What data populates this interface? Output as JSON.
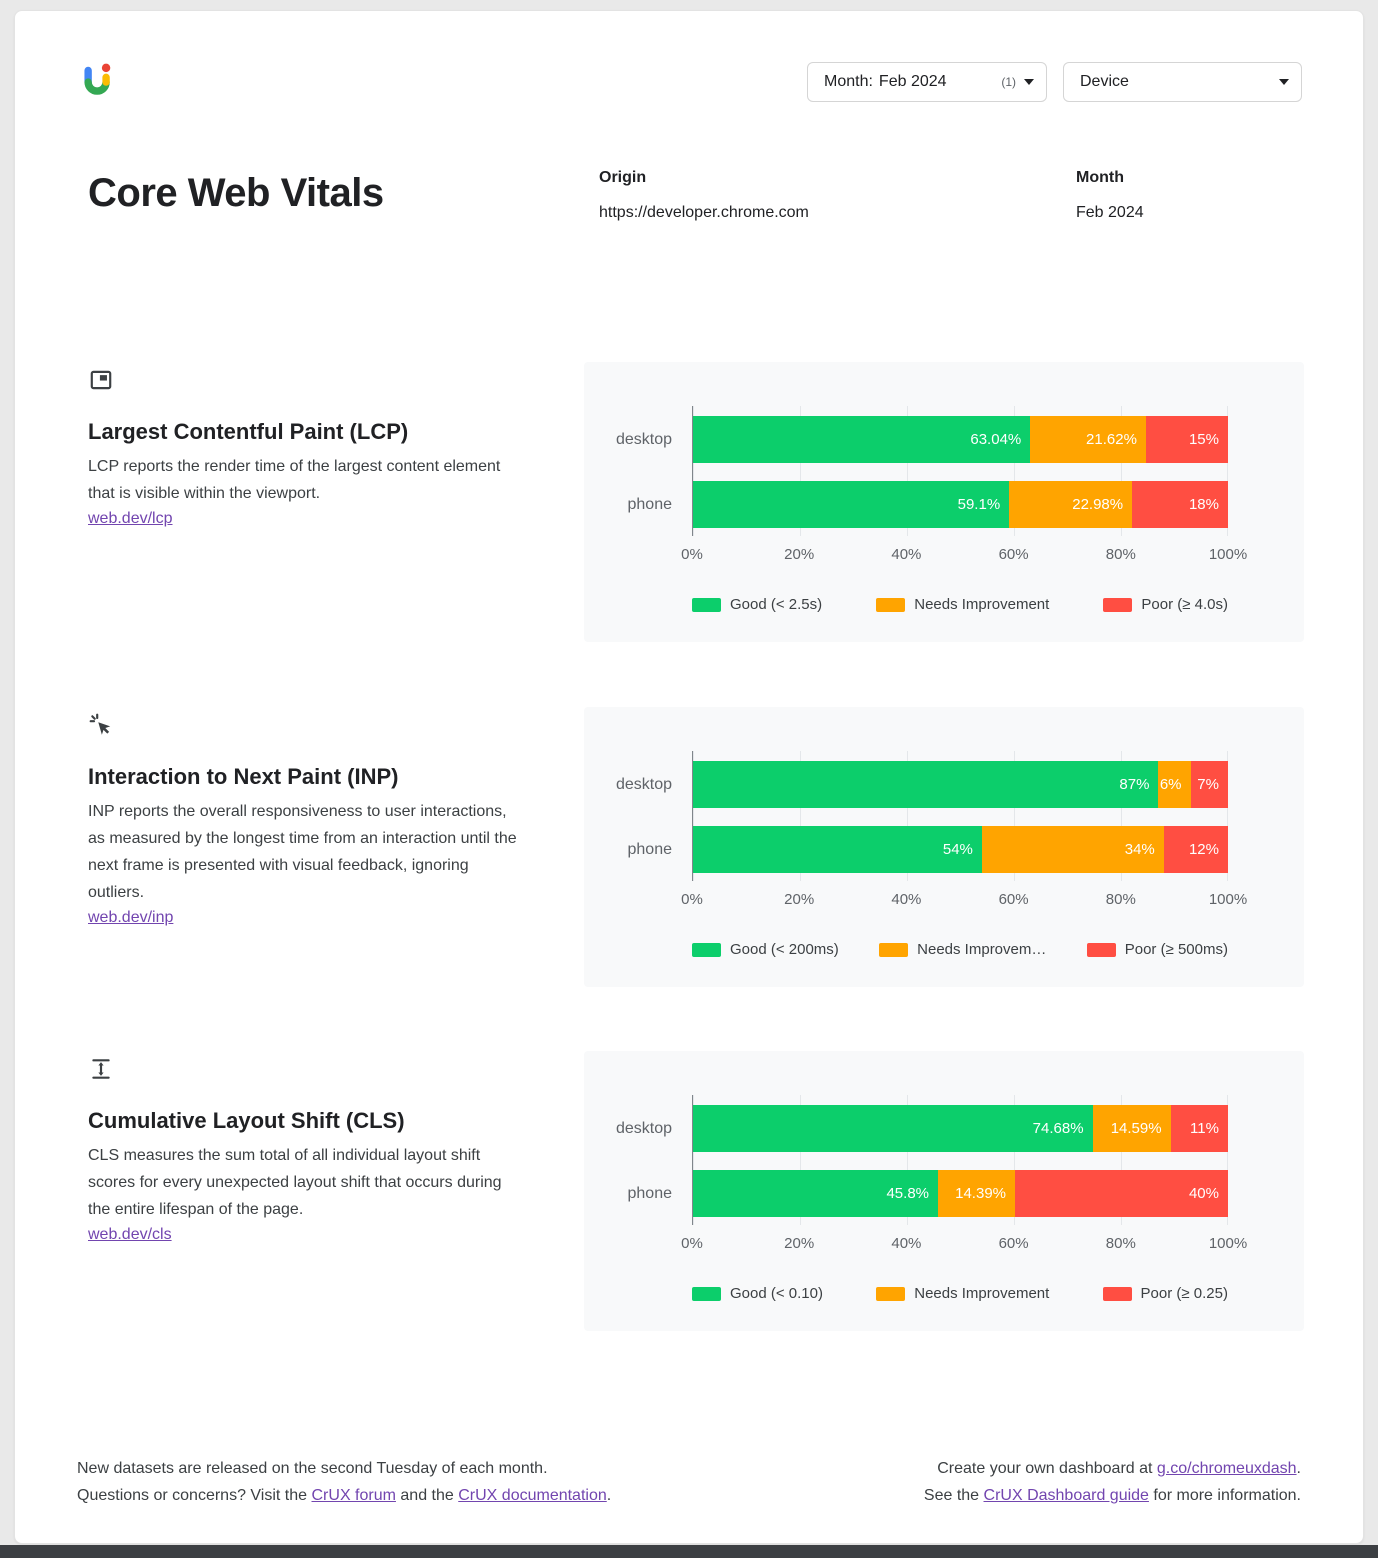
{
  "colors": {
    "good": "#0cce6b",
    "needs_improvement": "#ffa400",
    "poor": "#ff4e42",
    "link": "#7245af"
  },
  "icons": {
    "logo": "crux-dashboard-logo",
    "lcp": "largest-contentful-paint-icon",
    "inp": "pointer-interaction-icon",
    "cls": "layout-shift-icon",
    "caret": "▾"
  },
  "toolbar": {
    "month_filter": {
      "label": "Month:",
      "value": "Feb 2024",
      "count": "(1)"
    },
    "device_filter": {
      "label": "Device"
    }
  },
  "header": {
    "title": "Core Web Vitals",
    "origin_label": "Origin",
    "origin_value": "https://developer.chrome.com",
    "month_label": "Month",
    "month_value": "Feb 2024"
  },
  "sections": [
    {
      "title": "Largest Contentful Paint (LCP)",
      "description": "LCP reports the render time of the largest content element that is visible within the viewport.",
      "link": "web.dev/lcp"
    },
    {
      "title": "Interaction to Next Paint (INP)",
      "description": "INP reports the overall responsiveness to user interactions, as measured by the longest time from an interaction until the next frame is presented with visual feedback, ignoring outliers.",
      "link": "web.dev/inp"
    },
    {
      "title": "Cumulative Layout Shift (CLS)",
      "description": "CLS measures the sum total of all individual layout shift scores for every unexpected layout shift that occurs during the entire lifespan of the page.",
      "link": "web.dev/cls"
    }
  ],
  "chart_data": [
    {
      "type": "bar",
      "metric": "LCP",
      "stacked": true,
      "orientation": "horizontal",
      "categories": [
        "desktop",
        "phone"
      ],
      "series": [
        {
          "name": "Good (< 2.5s)",
          "color_key": "good",
          "values": [
            63.04,
            59.1
          ]
        },
        {
          "name": "Needs Improvement",
          "color_key": "needs_improvement",
          "values": [
            21.62,
            22.98
          ]
        },
        {
          "name": "Poor (≥ 4.0s)",
          "color_key": "poor",
          "values": [
            15.34,
            17.92
          ]
        }
      ],
      "data_labels": [
        [
          "63.04%",
          "21.62%",
          "15%"
        ],
        [
          "59.1%",
          "22.98%",
          "18%"
        ]
      ],
      "x_ticks": [
        "0%",
        "20%",
        "40%",
        "60%",
        "80%",
        "100%"
      ],
      "xlim": [
        0,
        100
      ],
      "gridlines": true,
      "legend_position": "bottom"
    },
    {
      "type": "bar",
      "metric": "INP",
      "stacked": true,
      "orientation": "horizontal",
      "categories": [
        "desktop",
        "phone"
      ],
      "series": [
        {
          "name": "Good (< 200ms)",
          "color_key": "good",
          "values": [
            87,
            54
          ]
        },
        {
          "name": "Needs Improvem…",
          "color_key": "needs_improvement",
          "values": [
            6,
            34
          ]
        },
        {
          "name": "Poor (≥ 500ms)",
          "color_key": "poor",
          "values": [
            7,
            12
          ]
        }
      ],
      "data_labels": [
        [
          "87%",
          "6%",
          "7%"
        ],
        [
          "54%",
          "34%",
          "12%"
        ]
      ],
      "x_ticks": [
        "0%",
        "20%",
        "40%",
        "60%",
        "80%",
        "100%"
      ],
      "xlim": [
        0,
        100
      ],
      "gridlines": true,
      "legend_position": "bottom"
    },
    {
      "type": "bar",
      "metric": "CLS",
      "stacked": true,
      "orientation": "horizontal",
      "categories": [
        "desktop",
        "phone"
      ],
      "series": [
        {
          "name": "Good (< 0.10)",
          "color_key": "good",
          "values": [
            74.68,
            45.8
          ]
        },
        {
          "name": "Needs Improvement",
          "color_key": "needs_improvement",
          "values": [
            14.59,
            14.39
          ]
        },
        {
          "name": "Poor (≥ 0.25)",
          "color_key": "poor",
          "values": [
            10.73,
            39.81
          ]
        }
      ],
      "data_labels": [
        [
          "74.68%",
          "14.59%",
          "11%"
        ],
        [
          "45.8%",
          "14.39%",
          "40%"
        ]
      ],
      "x_ticks": [
        "0%",
        "20%",
        "40%",
        "60%",
        "80%",
        "100%"
      ],
      "xlim": [
        0,
        100
      ],
      "gridlines": true,
      "legend_position": "bottom"
    }
  ],
  "footer": {
    "left_line1": "New datasets are released on the second Tuesday of each month.",
    "left_line2_prefix": "Questions or concerns? Visit the ",
    "left_line2_link1": "CrUX forum",
    "left_line2_middle": " and the ",
    "left_line2_link2": "CrUX documentation",
    "left_line2_suffix": ".",
    "right_line1_prefix": "Create your own dashboard at ",
    "right_line1_link": "g.co/chromeuxdash",
    "right_line1_suffix": ".",
    "right_line2_prefix": "See the ",
    "right_line2_link": "CrUX Dashboard guide",
    "right_line2_suffix": " for more information."
  }
}
